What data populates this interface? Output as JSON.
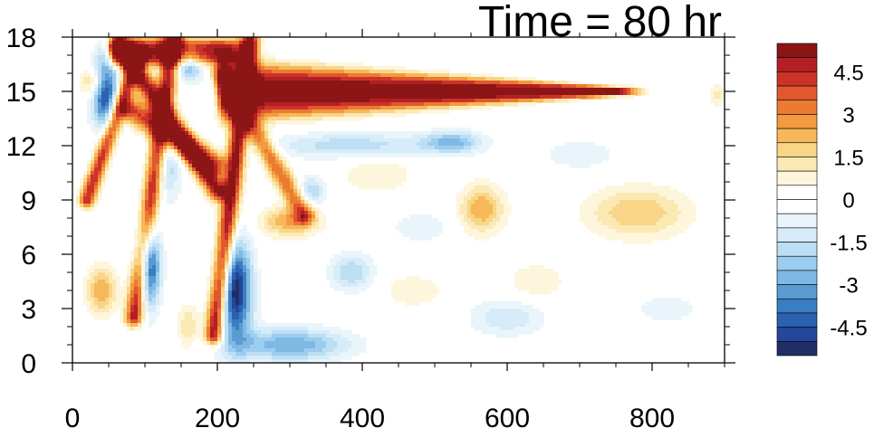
{
  "chart_data": {
    "type": "heatmap",
    "title": "Time = 80 hr",
    "xlabel": "",
    "ylabel": "",
    "xlim": [
      0,
      900
    ],
    "ylim": [
      0,
      18
    ],
    "x_ticks": [
      "0",
      "200",
      "400",
      "600",
      "800"
    ],
    "x_tick_values": [
      0,
      200,
      400,
      600,
      800
    ],
    "y_ticks": [
      "0",
      "3",
      "6",
      "9",
      "12",
      "15",
      "18"
    ],
    "y_tick_values": [
      0,
      3,
      6,
      9,
      12,
      15,
      18
    ],
    "colorbar": {
      "levels": [
        -5.5,
        -5,
        -4.5,
        -4,
        -3.5,
        -3,
        -2.5,
        -2,
        -1.5,
        -1,
        -0.5,
        0,
        0.5,
        1,
        1.5,
        2,
        2.5,
        3,
        3.5,
        4,
        4.5,
        5,
        5.5
      ],
      "colors": [
        "#1f2f66",
        "#23479a",
        "#2c61b0",
        "#3b7dc2",
        "#5a9bd1",
        "#7fb9e3",
        "#9dcdee",
        "#bcdff4",
        "#d6ecf8",
        "#eaf5fb",
        "#ffffff",
        "#ffffff",
        "#fdf6dc",
        "#fbe9b4",
        "#f9d587",
        "#f6b859",
        "#f29a3f",
        "#ec7b32",
        "#e1582d",
        "#cc3328",
        "#b21f24",
        "#8c1515"
      ],
      "labels": [
        "4.5",
        "3",
        "1.5",
        "0",
        "-1.5",
        "-3",
        "-4.5"
      ],
      "label_values": [
        4.5,
        3,
        1.5,
        0,
        -1.5,
        -3,
        -4.5
      ]
    },
    "features": [
      {
        "kind": "band",
        "x0": 210,
        "x1": 750,
        "y": 15.0,
        "half_width0": 1.6,
        "half_width1": 0.25,
        "value": 5.5
      },
      {
        "kind": "band",
        "x0": 60,
        "x1": 210,
        "y": 17.2,
        "half_width0": 0.8,
        "half_width1": 0.7,
        "value": 5.0
      },
      {
        "kind": "line",
        "from": [
          65,
          17.5
        ],
        "to": [
          200,
          9.5
        ],
        "width": 1.0,
        "value": 5.0
      },
      {
        "kind": "line",
        "from": [
          80,
          14.0
        ],
        "to": [
          195,
          11.0
        ],
        "width": 1.2,
        "value": 4.0
      },
      {
        "kind": "line",
        "from": [
          195,
          1.5
        ],
        "to": [
          245,
          17.8
        ],
        "width": 0.9,
        "value": 5.5
      },
      {
        "kind": "line",
        "from": [
          85,
          2.5
        ],
        "to": [
          140,
          18.0
        ],
        "width": 0.9,
        "value": 5.0
      },
      {
        "kind": "line",
        "from": [
          20,
          9.0
        ],
        "to": [
          90,
          17.0
        ],
        "width": 0.8,
        "value": 4.5
      },
      {
        "kind": "line",
        "from": [
          205,
          16.0
        ],
        "to": [
          320,
          8.2
        ],
        "width": 1.0,
        "value": 3.5
      },
      {
        "kind": "blob",
        "x": 30,
        "y": 15.5,
        "rx": 18,
        "ry": 0.8,
        "value": 2.5
      },
      {
        "kind": "blob",
        "x": 40,
        "y": 4.0,
        "rx": 20,
        "ry": 1.3,
        "value": 2.5
      },
      {
        "kind": "blob",
        "x": 160,
        "y": 2.0,
        "rx": 15,
        "ry": 1.2,
        "value": 1.5
      },
      {
        "kind": "blob",
        "x": 565,
        "y": 8.5,
        "rx": 30,
        "ry": 1.3,
        "value": 2.5
      },
      {
        "kind": "blob",
        "x": 640,
        "y": 4.5,
        "rx": 40,
        "ry": 1.0,
        "value": 1.0
      },
      {
        "kind": "blob",
        "x": 780,
        "y": 8.3,
        "rx": 70,
        "ry": 1.4,
        "value": 2.0
      },
      {
        "kind": "blob",
        "x": 420,
        "y": 10.5,
        "rx": 50,
        "ry": 1.2,
        "value": 1.0
      },
      {
        "kind": "blob",
        "x": 470,
        "y": 4.0,
        "rx": 40,
        "ry": 0.9,
        "value": 1.0
      },
      {
        "kind": "blob",
        "x": 300,
        "y": 7.8,
        "rx": 40,
        "ry": 0.8,
        "value": 2.5
      },
      {
        "kind": "blob",
        "x": 890,
        "y": 14.8,
        "rx": 10,
        "ry": 0.5,
        "value": 1.5
      },
      {
        "kind": "blob",
        "x": 45,
        "y": 15.0,
        "rx": 18,
        "ry": 2.0,
        "value": -5.0
      },
      {
        "kind": "blob",
        "x": 105,
        "y": 5.5,
        "rx": 15,
        "ry": 2.3,
        "value": -5.5
      },
      {
        "kind": "blob",
        "x": 130,
        "y": 11.0,
        "rx": 20,
        "ry": 2.0,
        "value": -2.0
      },
      {
        "kind": "blob",
        "x": 160,
        "y": 16.5,
        "rx": 20,
        "ry": 0.9,
        "value": -3.0
      },
      {
        "kind": "blob",
        "x": 225,
        "y": 4.0,
        "rx": 22,
        "ry": 2.8,
        "value": -5.5
      },
      {
        "kind": "blob",
        "x": 300,
        "y": 1.0,
        "rx": 80,
        "ry": 0.9,
        "value": -3.0
      },
      {
        "kind": "blob",
        "x": 390,
        "y": 12.0,
        "rx": 110,
        "ry": 0.7,
        "value": -2.0
      },
      {
        "kind": "blob",
        "x": 525,
        "y": 12.2,
        "rx": 40,
        "ry": 0.6,
        "value": -2.5
      },
      {
        "kind": "blob",
        "x": 385,
        "y": 5.0,
        "rx": 30,
        "ry": 1.0,
        "value": -2.0
      },
      {
        "kind": "blob",
        "x": 600,
        "y": 2.5,
        "rx": 50,
        "ry": 1.0,
        "value": -1.5
      },
      {
        "kind": "blob",
        "x": 700,
        "y": 11.5,
        "rx": 50,
        "ry": 0.8,
        "value": -1.0
      },
      {
        "kind": "blob",
        "x": 330,
        "y": 9.5,
        "rx": 20,
        "ry": 0.8,
        "value": -2.0
      },
      {
        "kind": "blob",
        "x": 480,
        "y": 7.5,
        "rx": 40,
        "ry": 0.8,
        "value": -1.0
      },
      {
        "kind": "blob",
        "x": 820,
        "y": 3.0,
        "rx": 40,
        "ry": 0.8,
        "value": -1.0
      }
    ]
  }
}
